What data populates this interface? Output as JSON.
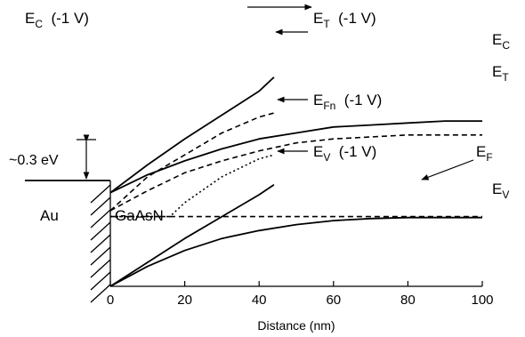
{
  "chart_data": {
    "type": "line",
    "xlabel": "Distance (nm)",
    "xlim": [
      0,
      100
    ],
    "x_ticks": [
      "0",
      "20",
      "40",
      "60",
      "80",
      "100"
    ],
    "regions": {
      "metal": "Au",
      "semiconductor": "GaAsN"
    },
    "barrier_annotation": "~0.3 eV",
    "series": [
      {
        "key": "Ec_bias",
        "name": "E_C (-1 V)",
        "style": "solid",
        "points": [
          [
            0,
            0.47
          ],
          [
            10,
            0.61
          ],
          [
            20,
            0.74
          ],
          [
            30,
            0.86
          ],
          [
            40,
            0.98
          ],
          [
            44,
            1.05
          ]
        ]
      },
      {
        "key": "Et_bias",
        "name": "E_T (-1 V)",
        "style": "dashed",
        "points": [
          [
            0,
            0.38
          ],
          [
            10,
            0.55
          ],
          [
            20,
            0.66
          ],
          [
            30,
            0.77
          ],
          [
            40,
            0.85
          ],
          [
            44,
            0.87
          ]
        ]
      },
      {
        "key": "Ec",
        "name": "E_C",
        "style": "solid",
        "points": [
          [
            0,
            0.47
          ],
          [
            10,
            0.56
          ],
          [
            20,
            0.63
          ],
          [
            30,
            0.69
          ],
          [
            40,
            0.74
          ],
          [
            50,
            0.77
          ],
          [
            60,
            0.8
          ],
          [
            70,
            0.81
          ],
          [
            80,
            0.82
          ],
          [
            90,
            0.83
          ],
          [
            100,
            0.83
          ]
        ]
      },
      {
        "key": "Et",
        "name": "E_T",
        "style": "dashed",
        "points": [
          [
            0,
            0.38
          ],
          [
            10,
            0.48
          ],
          [
            20,
            0.57
          ],
          [
            30,
            0.63
          ],
          [
            40,
            0.68
          ],
          [
            50,
            0.72
          ],
          [
            60,
            0.74
          ],
          [
            70,
            0.75
          ],
          [
            80,
            0.76
          ],
          [
            90,
            0.76
          ],
          [
            100,
            0.76
          ]
        ]
      },
      {
        "key": "Efn_bias",
        "name": "E_Fn (-1 V)",
        "style": "dotted",
        "points": [
          [
            0,
            0.35
          ],
          [
            16,
            0.35
          ],
          [
            20,
            0.42
          ],
          [
            30,
            0.55
          ],
          [
            40,
            0.64
          ],
          [
            44,
            0.66
          ]
        ]
      },
      {
        "key": "Ef",
        "name": "E_F",
        "style": "dashdot",
        "points": [
          [
            0,
            0.35
          ],
          [
            16,
            0.35
          ]
        ]
      },
      {
        "key": "Ef_dash",
        "name": "E_F",
        "style": "dashed",
        "points": [
          [
            16,
            0.35
          ],
          [
            100,
            0.35
          ]
        ]
      },
      {
        "key": "Ev_bias",
        "name": "E_V (-1 V)",
        "style": "solid",
        "points": [
          [
            0,
            0.0
          ],
          [
            10,
            0.12
          ],
          [
            20,
            0.24
          ],
          [
            30,
            0.35
          ],
          [
            40,
            0.46
          ],
          [
            44,
            0.51
          ]
        ]
      },
      {
        "key": "Ev",
        "name": "E_V",
        "style": "solid",
        "points": [
          [
            0,
            0.0
          ],
          [
            10,
            0.1
          ],
          [
            20,
            0.18
          ],
          [
            30,
            0.24
          ],
          [
            40,
            0.28
          ],
          [
            50,
            0.31
          ],
          [
            60,
            0.33
          ],
          [
            70,
            0.34
          ],
          [
            80,
            0.345
          ],
          [
            90,
            0.345
          ],
          [
            100,
            0.345
          ]
        ]
      }
    ],
    "labels": {
      "ec_bias": "E_C  (-1 V)",
      "et_bias": "E_T  (-1 V)",
      "ec": "E_C",
      "et": "E_T",
      "efn_bias": "E_Fn  (-1 V)",
      "ev_bias": "E_V  (-1 V)",
      "ef": "E_F",
      "ev": "E_V"
    }
  }
}
